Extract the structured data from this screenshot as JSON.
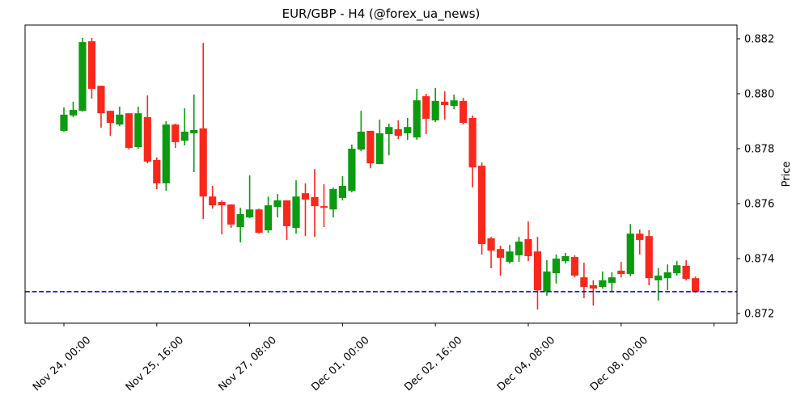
{
  "chart_data": {
    "type": "candlestick",
    "title": "EUR/GBP - H4 (@forex_ua_news)",
    "symbol": "EUR/GBP",
    "timeframe": "H4",
    "ylabel": "Price",
    "grid": false,
    "legend": null,
    "ylim": [
      0.87165,
      0.8825
    ],
    "y_ticks": [
      0.872,
      0.874,
      0.876,
      0.878,
      0.88,
      0.882
    ],
    "x_ticks": [
      {
        "index": 0,
        "label": "Nov 24, 00:00"
      },
      {
        "index": 10,
        "label": "Nov 25, 16:00"
      },
      {
        "index": 20,
        "label": "Nov 27, 08:00"
      },
      {
        "index": 30,
        "label": "Dec 01, 00:00"
      },
      {
        "index": 40,
        "label": "Dec 02, 16:00"
      },
      {
        "index": 50,
        "label": "Dec 04, 08:00"
      },
      {
        "index": 60,
        "label": "Dec 08, 00:00"
      },
      {
        "index": 70,
        "label": ""
      }
    ],
    "current_price_line": {
      "price": 0.8728,
      "style": "dashed",
      "color": "#0000ee"
    },
    "colors": {
      "up": "#0b9a10",
      "down": "#f9281a"
    },
    "ohlc_columns": [
      "open",
      "high",
      "low",
      "close"
    ],
    "ohlc": [
      [
        0.87865,
        0.8795,
        0.87862,
        0.87924
      ],
      [
        0.87921,
        0.87971,
        0.87915,
        0.87941
      ],
      [
        0.87938,
        0.88203,
        0.87935,
        0.88188
      ],
      [
        0.88191,
        0.88203,
        0.87982,
        0.88018
      ],
      [
        0.88029,
        0.88029,
        0.87876,
        0.87929
      ],
      [
        0.87938,
        0.87938,
        0.87847,
        0.87894
      ],
      [
        0.87888,
        0.87953,
        0.87882,
        0.87924
      ],
      [
        0.87929,
        0.87929,
        0.87797,
        0.87803
      ],
      [
        0.87806,
        0.87953,
        0.878,
        0.87929
      ],
      [
        0.87915,
        0.87994,
        0.87747,
        0.87753
      ],
      [
        0.87759,
        0.87768,
        0.87653,
        0.87674
      ],
      [
        0.87674,
        0.879,
        0.87647,
        0.87888
      ],
      [
        0.87888,
        0.87891,
        0.87803,
        0.87824
      ],
      [
        0.87829,
        0.87947,
        0.87812,
        0.87862
      ],
      [
        0.87856,
        0.87997,
        0.87715,
        0.87868
      ],
      [
        0.87874,
        0.88185,
        0.87544,
        0.87626
      ],
      [
        0.87626,
        0.87665,
        0.87582,
        0.87594
      ],
      [
        0.87606,
        0.87612,
        0.87488,
        0.87594
      ],
      [
        0.87597,
        0.87597,
        0.87512,
        0.87524
      ],
      [
        0.87515,
        0.87585,
        0.87459,
        0.87562
      ],
      [
        0.8755,
        0.87703,
        0.87547,
        0.87579
      ],
      [
        0.87579,
        0.87582,
        0.87491,
        0.87494
      ],
      [
        0.87503,
        0.87626,
        0.87494,
        0.87594
      ],
      [
        0.87588,
        0.87635,
        0.8755,
        0.87612
      ],
      [
        0.87612,
        0.87612,
        0.87468,
        0.87518
      ],
      [
        0.87512,
        0.87685,
        0.87491,
        0.87626
      ],
      [
        0.87638,
        0.87674,
        0.87482,
        0.87615
      ],
      [
        0.87624,
        0.87726,
        0.87479,
        0.87591
      ],
      [
        0.87591,
        0.87671,
        0.87515,
        0.87585
      ],
      [
        0.87579,
        0.87659,
        0.8755,
        0.87653
      ],
      [
        0.87621,
        0.877,
        0.87612,
        0.87665
      ],
      [
        0.87647,
        0.87815,
        0.87641,
        0.878
      ],
      [
        0.87797,
        0.87938,
        0.87791,
        0.87862
      ],
      [
        0.87865,
        0.87865,
        0.87729,
        0.87747
      ],
      [
        0.87744,
        0.87906,
        0.87744,
        0.87856
      ],
      [
        0.87853,
        0.87891,
        0.87776,
        0.87879
      ],
      [
        0.87871,
        0.87903,
        0.87835,
        0.87847
      ],
      [
        0.87856,
        0.87912,
        0.87832,
        0.87879
      ],
      [
        0.87841,
        0.88018,
        0.87832,
        0.87976
      ],
      [
        0.87991,
        0.88,
        0.87853,
        0.87909
      ],
      [
        0.87903,
        0.88021,
        0.87897,
        0.87974
      ],
      [
        0.87971,
        0.88009,
        0.87906,
        0.87959
      ],
      [
        0.87956,
        0.87997,
        0.87944,
        0.87976
      ],
      [
        0.87974,
        0.87985,
        0.87888,
        0.87894
      ],
      [
        0.87912,
        0.87921,
        0.87659,
        0.87732
      ],
      [
        0.87738,
        0.8775,
        0.87415,
        0.87453
      ],
      [
        0.87474,
        0.87479,
        0.87365,
        0.87429
      ],
      [
        0.87435,
        0.87447,
        0.87338,
        0.87403
      ],
      [
        0.87388,
        0.8745,
        0.87382,
        0.87426
      ],
      [
        0.87412,
        0.87479,
        0.87388,
        0.87462
      ],
      [
        0.87471,
        0.87535,
        0.87391,
        0.87409
      ],
      [
        0.87426,
        0.87479,
        0.87215,
        0.87285
      ],
      [
        0.87279,
        0.87394,
        0.87265,
        0.87353
      ],
      [
        0.87347,
        0.87415,
        0.87309,
        0.874
      ],
      [
        0.87391,
        0.87421,
        0.87382,
        0.87409
      ],
      [
        0.87406,
        0.87412,
        0.87332,
        0.87338
      ],
      [
        0.87332,
        0.87385,
        0.87256,
        0.87297
      ],
      [
        0.87303,
        0.87321,
        0.87229,
        0.87291
      ],
      [
        0.87297,
        0.87353,
        0.87291,
        0.87321
      ],
      [
        0.87312,
        0.8735,
        0.87279,
        0.87332
      ],
      [
        0.87356,
        0.87388,
        0.87332,
        0.87344
      ],
      [
        0.87344,
        0.87526,
        0.87335,
        0.87491
      ],
      [
        0.87491,
        0.87506,
        0.87415,
        0.87468
      ],
      [
        0.87482,
        0.87503,
        0.87303,
        0.87329
      ],
      [
        0.87321,
        0.87365,
        0.87247,
        0.87338
      ],
      [
        0.87329,
        0.87379,
        0.87285,
        0.8735
      ],
      [
        0.87347,
        0.87391,
        0.87338,
        0.87376
      ],
      [
        0.87374,
        0.87394,
        0.87321,
        0.87326
      ],
      [
        0.87329,
        0.87335,
        0.87276,
        0.87279
      ]
    ]
  }
}
